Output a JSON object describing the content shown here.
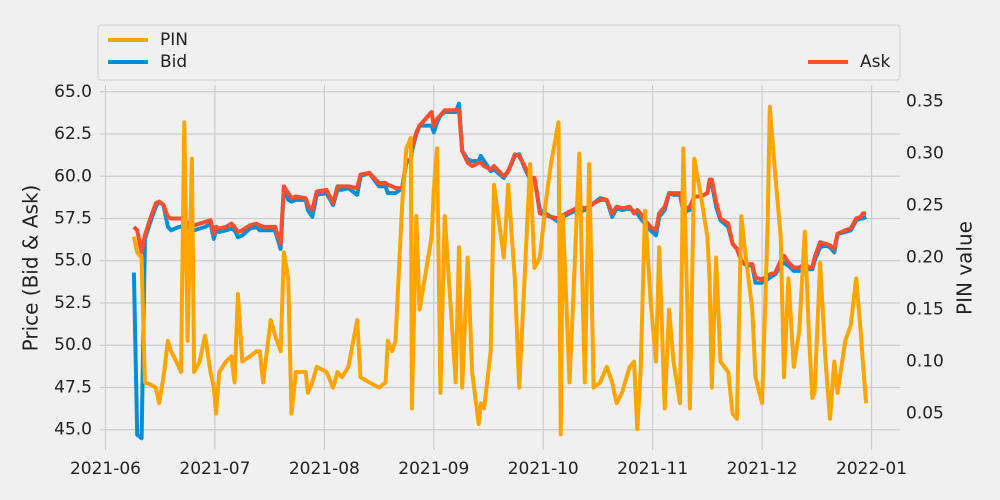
{
  "chart_data": {
    "type": "line",
    "x": [
      0.26,
      0.29,
      0.33,
      0.36,
      0.41,
      0.46,
      0.49,
      0.53,
      0.57,
      0.6,
      0.67,
      0.69,
      0.72,
      0.75,
      0.79,
      0.81,
      0.86,
      0.91,
      0.96,
      0.99,
      1.01,
      1.04,
      1.1,
      1.15,
      1.18,
      1.21,
      1.25,
      1.32,
      1.38,
      1.41,
      1.44,
      1.51,
      1.55,
      1.6,
      1.63,
      1.67,
      1.7,
      1.74,
      1.83,
      1.85,
      1.89,
      1.93,
      2.02,
      2.08,
      2.12,
      2.16,
      2.22,
      2.3,
      2.33,
      2.41,
      2.5,
      2.56,
      2.58,
      2.62,
      2.65,
      2.71,
      2.75,
      2.79,
      2.8,
      2.84,
      2.87,
      2.98,
      3.0,
      3.03,
      3.06,
      3.1,
      3.2,
      3.23,
      3.26,
      3.31,
      3.35,
      3.41,
      3.43,
      3.46,
      3.52,
      3.55,
      3.64,
      3.68,
      3.74,
      3.78,
      3.83,
      3.88,
      3.92,
      3.97,
      4.02,
      4.07,
      4.14,
      4.16,
      4.18,
      4.24,
      4.27,
      4.33,
      4.38,
      4.42,
      4.46,
      4.52,
      4.58,
      4.63,
      4.67,
      4.72,
      4.79,
      4.83,
      4.86,
      4.89,
      4.93,
      4.98,
      5.03,
      5.06,
      5.11,
      5.15,
      5.19,
      5.25,
      5.28,
      5.34,
      5.38,
      5.44,
      5.5,
      5.52,
      5.54,
      5.58,
      5.62,
      5.69,
      5.73,
      5.77,
      5.81,
      5.84,
      5.91,
      5.94,
      6.0,
      6.05,
      6.07,
      6.12,
      6.17,
      6.2,
      6.24,
      6.29,
      6.34,
      6.39,
      6.43,
      6.46,
      6.48,
      6.53,
      6.58,
      6.62,
      6.66,
      6.69,
      6.76,
      6.81,
      6.86,
      6.9,
      6.92,
      6.95
    ],
    "series": [
      {
        "name": "Bid",
        "color": "#008fd5",
        "values": [
          54.3,
          44.7,
          44.5,
          56.3,
          57.3,
          58.2,
          58.5,
          58.3,
          57.0,
          56.8,
          57.0,
          57.0,
          57.2,
          57.0,
          56.8,
          56.8,
          56.9,
          57.0,
          57.2,
          56.3,
          56.8,
          56.7,
          56.8,
          56.9,
          56.8,
          56.4,
          56.5,
          56.9,
          57.0,
          56.8,
          56.8,
          56.8,
          56.8,
          55.7,
          59.4,
          58.6,
          58.5,
          58.6,
          58.6,
          58.0,
          57.6,
          58.9,
          59.0,
          58.3,
          59.2,
          59.2,
          59.3,
          58.9,
          60.0,
          60.2,
          59.4,
          59.4,
          59.0,
          59.0,
          59.0,
          59.3,
          60.8,
          61.0,
          61.5,
          62.5,
          63.0,
          63.0,
          62.6,
          63.2,
          63.6,
          63.8,
          63.8,
          64.3,
          61.5,
          61.0,
          60.9,
          60.9,
          61.2,
          60.9,
          60.3,
          60.4,
          59.9,
          60.3,
          61.2,
          61.3,
          60.5,
          59.8,
          59.8,
          58.0,
          57.8,
          57.6,
          57.3,
          57.5,
          57.6,
          57.8,
          57.9,
          57.9,
          58.0,
          58.3,
          58.4,
          58.7,
          58.6,
          57.6,
          58.1,
          58.0,
          58.1,
          57.9,
          57.8,
          57.5,
          57.2,
          56.8,
          56.5,
          57.6,
          58.0,
          59.0,
          58.9,
          58.9,
          57.9,
          58.0,
          58.8,
          58.8,
          59.0,
          59.6,
          59.6,
          58.2,
          57.4,
          57.0,
          56.0,
          55.7,
          55.0,
          54.8,
          54.7,
          53.7,
          53.7,
          53.9,
          54.0,
          54.2,
          54.7,
          54.9,
          54.7,
          54.4,
          54.4,
          54.6,
          54.5,
          54.5,
          55.0,
          55.8,
          55.9,
          55.8,
          55.5,
          56.6,
          56.7,
          56.8,
          57.4,
          57.5,
          57.5,
          57.6
        ]
      },
      {
        "name": "Ask",
        "color": "#fc4f30",
        "values": [
          57.0,
          56.8,
          55.5,
          56.5,
          57.5,
          58.4,
          58.5,
          58.3,
          57.6,
          57.5,
          57.5,
          57.5,
          57.5,
          57.2,
          57.0,
          57.1,
          57.2,
          57.3,
          57.4,
          56.6,
          57.0,
          56.9,
          57.0,
          57.2,
          57.0,
          56.7,
          56.8,
          57.1,
          57.2,
          57.1,
          57.0,
          57.0,
          57.0,
          56.0,
          59.4,
          59.0,
          58.7,
          58.8,
          58.7,
          58.3,
          58.0,
          59.1,
          59.2,
          58.4,
          59.4,
          59.4,
          59.4,
          59.3,
          60.1,
          60.2,
          59.6,
          59.6,
          59.5,
          59.4,
          59.3,
          59.3,
          60.9,
          61.0,
          61.6,
          62.6,
          63.0,
          63.8,
          63.0,
          63.4,
          63.6,
          63.9,
          63.9,
          63.9,
          61.5,
          60.8,
          60.6,
          60.8,
          60.8,
          60.6,
          60.4,
          60.6,
          60.0,
          60.3,
          61.3,
          61.2,
          60.6,
          59.9,
          59.9,
          57.8,
          57.7,
          57.6,
          57.5,
          57.5,
          57.7,
          57.9,
          58.0,
          58.2,
          58.1,
          58.2,
          58.4,
          58.6,
          58.6,
          57.8,
          58.2,
          58.1,
          58.2,
          57.8,
          58.0,
          57.8,
          57.4,
          57.0,
          56.8,
          57.8,
          58.2,
          59.0,
          59.0,
          59.0,
          58.0,
          58.2,
          58.8,
          58.8,
          59.0,
          59.8,
          59.8,
          58.5,
          57.5,
          57.2,
          56.0,
          55.7,
          55.0,
          54.8,
          54.8,
          54.0,
          53.9,
          54.1,
          54.2,
          54.3,
          55.0,
          55.3,
          54.9,
          54.6,
          54.6,
          54.8,
          54.6,
          54.6,
          55.2,
          56.1,
          56.0,
          55.9,
          55.7,
          56.6,
          56.8,
          56.9,
          57.5,
          57.6,
          57.8,
          57.8
        ]
      },
      {
        "name": "PIN",
        "color": "#ffa500",
        "axis": "y2",
        "values": [
          0.22,
          0.205,
          0.2,
          0.08,
          0.078,
          0.075,
          0.06,
          0.085,
          0.12,
          0.11,
          0.095,
          0.09,
          0.33,
          0.12,
          0.295,
          0.09,
          0.1,
          0.125,
          0.09,
          0.075,
          0.05,
          0.09,
          0.1,
          0.105,
          0.08,
          0.165,
          0.1,
          0.105,
          0.11,
          0.11,
          0.08,
          0.14,
          0.125,
          0.11,
          0.205,
          0.18,
          0.05,
          0.09,
          0.09,
          0.07,
          0.08,
          0.095,
          0.09,
          0.075,
          0.09,
          0.085,
          0.095,
          0.14,
          0.085,
          0.08,
          0.075,
          0.08,
          0.12,
          0.11,
          0.12,
          0.25,
          0.305,
          0.315,
          0.055,
          0.24,
          0.15,
          0.22,
          0.265,
          0.305,
          0.07,
          0.24,
          0.08,
          0.21,
          0.075,
          0.2,
          0.09,
          0.04,
          0.06,
          0.055,
          0.11,
          0.27,
          0.2,
          0.27,
          0.18,
          0.075,
          0.18,
          0.29,
          0.19,
          0.2,
          0.25,
          0.29,
          0.33,
          0.03,
          0.24,
          0.08,
          0.15,
          0.3,
          0.08,
          0.29,
          0.075,
          0.08,
          0.095,
          0.08,
          0.06,
          0.07,
          0.095,
          0.1,
          0.035,
          0.09,
          0.245,
          0.16,
          0.1,
          0.21,
          0.055,
          0.15,
          0.1,
          0.06,
          0.305,
          0.055,
          0.295,
          0.26,
          0.22,
          0.18,
          0.075,
          0.2,
          0.1,
          0.09,
          0.05,
          0.045,
          0.24,
          0.21,
          0.15,
          0.085,
          0.06,
          0.23,
          0.345,
          0.28,
          0.22,
          0.085,
          0.18,
          0.095,
          0.13,
          0.225,
          0.12,
          0.065,
          0.07,
          0.195,
          0.1,
          0.045,
          0.1,
          0.07,
          0.12,
          0.135,
          0.18,
          0.13,
          0.1,
          0.06
        ]
      }
    ],
    "y_label": "Price (Bid & Ask)",
    "y2_label": "PIN value",
    "xlim": [
      -0.05,
      7.26
    ],
    "xticks": [
      {
        "value": 0,
        "label": "2021-06"
      },
      {
        "value": 1,
        "label": "2021-07"
      },
      {
        "value": 2,
        "label": "2021-08"
      },
      {
        "value": 3,
        "label": "2021-09"
      },
      {
        "value": 4,
        "label": "2021-10"
      },
      {
        "value": 5,
        "label": "2021-11"
      },
      {
        "value": 6,
        "label": "2021-12"
      },
      {
        "value": 7,
        "label": "2022-01"
      }
    ],
    "ylim": [
      43.8,
      65.4
    ],
    "yticks": [
      {
        "value": 45,
        "label": "45.0"
      },
      47.5,
      {
        "value": 50,
        "label": "50.0"
      },
      52.5,
      {
        "value": 55,
        "label": "55.0"
      },
      57.5,
      {
        "value": 60,
        "label": "60.0"
      },
      62.5,
      {
        "value": 65,
        "label": "65.0"
      }
    ],
    "y2lim": [
      0.015,
      0.366
    ],
    "y2ticks": [
      0.05,
      {
        "value": 0.1,
        "label": "0.10"
      },
      0.15,
      {
        "value": 0.2,
        "label": "0.20"
      },
      0.25,
      {
        "value": 0.3,
        "label": "0.30"
      },
      0.35
    ],
    "grid": true
  }
}
